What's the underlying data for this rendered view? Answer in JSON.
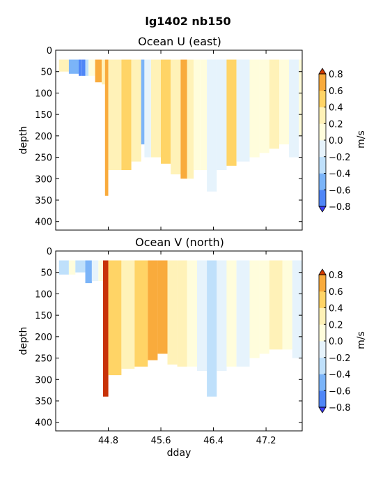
{
  "figure": {
    "suptitle": "lg1402 nb150"
  },
  "colors": {
    "levels": [
      -0.8,
      -0.6,
      -0.4,
      -0.2,
      0.0,
      0.2,
      0.4,
      0.6,
      0.8
    ],
    "bins": [
      "#3b3bf5",
      "#4f86f7",
      "#7bb4f8",
      "#bfe0fb",
      "#e6f3fc",
      "#fffddc",
      "#fff2b8",
      "#ffd466",
      "#f9ab3c",
      "#f05a14",
      "#c83208"
    ],
    "under": "#3b3bf5",
    "over": "#d23b00"
  },
  "chart_data": [
    {
      "type": "heatmap",
      "title": "Ocean U (east)",
      "xlabel": "",
      "ylabel": "depth",
      "xlim": [
        44.0,
        47.75
      ],
      "ylim": [
        420,
        0
      ],
      "xticks": [
        "44.8",
        "45.6",
        "46.4",
        "47.2"
      ],
      "xtick_values": [
        44.8,
        45.6,
        46.4,
        47.2
      ],
      "yticks": [
        "0",
        "50",
        "100",
        "150",
        "200",
        "250",
        "300",
        "350",
        "400"
      ],
      "ytick_values": [
        0,
        50,
        100,
        150,
        200,
        250,
        300,
        350,
        400
      ],
      "colorbar": {
        "label": "m/s",
        "ticks": [
          "0.8",
          "0.6",
          "0.4",
          "0.2",
          "0.0",
          "−0.2",
          "−0.4",
          "−0.6",
          "−0.8"
        ],
        "tick_values": [
          0.8,
          0.6,
          0.4,
          0.2,
          0.0,
          -0.2,
          -0.4,
          -0.6,
          -0.8
        ]
      },
      "data_coverage": {
        "x": [
          44.05,
          47.75
        ],
        "top_depth": 22
      },
      "segments": [
        {
          "x": [
            44.05,
            44.2
          ],
          "bottom": 50,
          "value": 0.3
        },
        {
          "x": [
            44.2,
            44.35
          ],
          "bottom": 55,
          "value": -0.5
        },
        {
          "x": [
            44.35,
            44.4
          ],
          "bottom": 60,
          "value": -0.7
        },
        {
          "x": [
            44.4,
            44.45
          ],
          "bottom": 60,
          "value": -0.8
        },
        {
          "x": [
            44.45,
            44.5
          ],
          "bottom": 60,
          "value": -0.4
        },
        {
          "x": [
            44.5,
            44.6
          ],
          "bottom": 60,
          "value": 0.1
        },
        {
          "x": [
            44.6,
            44.7
          ],
          "bottom": 75,
          "value": 0.6
        },
        {
          "x": [
            44.7,
            44.75
          ],
          "bottom": 80,
          "value": 0.3
        },
        {
          "x": [
            44.75,
            44.8
          ],
          "bottom": 340,
          "value": 0.7
        },
        {
          "x": [
            44.8,
            45.0
          ],
          "bottom": 280,
          "value": 0.35
        },
        {
          "x": [
            45.0,
            45.15
          ],
          "bottom": 280,
          "value": 0.45
        },
        {
          "x": [
            45.15,
            45.3
          ],
          "bottom": 260,
          "value": 0.2
        },
        {
          "x": [
            45.3,
            45.35
          ],
          "bottom": 220,
          "value": -0.5
        },
        {
          "x": [
            45.35,
            45.45
          ],
          "bottom": 250,
          "value": -0.1
        },
        {
          "x": [
            45.45,
            45.6
          ],
          "bottom": 250,
          "value": 0.25
        },
        {
          "x": [
            45.6,
            45.75
          ],
          "bottom": 265,
          "value": 0.5
        },
        {
          "x": [
            45.75,
            45.9
          ],
          "bottom": 290,
          "value": 0.2
        },
        {
          "x": [
            45.9,
            46.0
          ],
          "bottom": 300,
          "value": 0.7
        },
        {
          "x": [
            46.0,
            46.1
          ],
          "bottom": 300,
          "value": 0.3
        },
        {
          "x": [
            46.1,
            46.2
          ],
          "bottom": 280,
          "value": 0.1
        },
        {
          "x": [
            46.2,
            46.3
          ],
          "bottom": 280,
          "value": 0.05
        },
        {
          "x": [
            46.3,
            46.45
          ],
          "bottom": 330,
          "value": -0.1
        },
        {
          "x": [
            46.45,
            46.6
          ],
          "bottom": 280,
          "value": -0.15
        },
        {
          "x": [
            46.6,
            46.75
          ],
          "bottom": 270,
          "value": 0.5
        },
        {
          "x": [
            46.75,
            46.95
          ],
          "bottom": 260,
          "value": -0.1
        },
        {
          "x": [
            46.95,
            47.1
          ],
          "bottom": 250,
          "value": 0.05
        },
        {
          "x": [
            47.1,
            47.25
          ],
          "bottom": 240,
          "value": 0.1
        },
        {
          "x": [
            47.25,
            47.4
          ],
          "bottom": 230,
          "value": 0.3
        },
        {
          "x": [
            47.4,
            47.55
          ],
          "bottom": 220,
          "value": 0.1
        },
        {
          "x": [
            47.55,
            47.7
          ],
          "bottom": 250,
          "value": -0.2
        },
        {
          "x": [
            47.7,
            47.75
          ],
          "bottom": 200,
          "value": 0.1
        }
      ]
    },
    {
      "type": "heatmap",
      "title": "Ocean V (north)",
      "xlabel": "dday",
      "ylabel": "depth",
      "xlim": [
        44.0,
        47.75
      ],
      "ylim": [
        420,
        0
      ],
      "xticks": [
        "44.8",
        "45.6",
        "46.4",
        "47.2"
      ],
      "xtick_values": [
        44.8,
        45.6,
        46.4,
        47.2
      ],
      "yticks": [
        "0",
        "50",
        "100",
        "150",
        "200",
        "250",
        "300",
        "350",
        "400"
      ],
      "ytick_values": [
        0,
        50,
        100,
        150,
        200,
        250,
        300,
        350,
        400
      ],
      "colorbar": {
        "label": "m/s",
        "ticks": [
          "0.8",
          "0.6",
          "0.4",
          "0.2",
          "0.0",
          "−0.2",
          "−0.4",
          "−0.6",
          "−0.8"
        ],
        "tick_values": [
          0.8,
          0.6,
          0.4,
          0.2,
          0.0,
          -0.2,
          -0.4,
          -0.6,
          -0.8
        ]
      },
      "data_coverage": {
        "x": [
          44.05,
          47.75
        ],
        "top_depth": 22
      },
      "segments": [
        {
          "x": [
            44.05,
            44.2
          ],
          "bottom": 55,
          "value": -0.25
        },
        {
          "x": [
            44.2,
            44.3
          ],
          "bottom": 55,
          "value": 0.1
        },
        {
          "x": [
            44.3,
            44.45
          ],
          "bottom": 50,
          "value": -0.3
        },
        {
          "x": [
            44.45,
            44.55
          ],
          "bottom": 75,
          "value": -0.5
        },
        {
          "x": [
            44.55,
            44.65
          ],
          "bottom": 70,
          "value": -0.2
        },
        {
          "x": [
            44.65,
            44.72
          ],
          "bottom": 70,
          "value": 0.1
        },
        {
          "x": [
            44.72,
            44.8
          ],
          "bottom": 340,
          "value": 0.8
        },
        {
          "x": [
            44.8,
            45.0
          ],
          "bottom": 290,
          "value": 0.5
        },
        {
          "x": [
            45.0,
            45.2
          ],
          "bottom": 275,
          "value": 0.3
        },
        {
          "x": [
            45.2,
            45.4
          ],
          "bottom": 270,
          "value": 0.5
        },
        {
          "x": [
            45.4,
            45.55
          ],
          "bottom": 255,
          "value": 0.6
        },
        {
          "x": [
            45.55,
            45.7
          ],
          "bottom": 240,
          "value": 0.65
        },
        {
          "x": [
            45.7,
            45.85
          ],
          "bottom": 265,
          "value": 0.25
        },
        {
          "x": [
            45.85,
            46.0
          ],
          "bottom": 270,
          "value": 0.2
        },
        {
          "x": [
            46.0,
            46.15
          ],
          "bottom": 270,
          "value": 0.05
        },
        {
          "x": [
            46.15,
            46.3
          ],
          "bottom": 280,
          "value": -0.1
        },
        {
          "x": [
            46.3,
            46.45
          ],
          "bottom": 340,
          "value": -0.25
        },
        {
          "x": [
            46.45,
            46.6
          ],
          "bottom": 280,
          "value": -0.1
        },
        {
          "x": [
            46.6,
            46.75
          ],
          "bottom": 270,
          "value": 0.05
        },
        {
          "x": [
            46.75,
            46.95
          ],
          "bottom": 270,
          "value": -0.1
        },
        {
          "x": [
            46.95,
            47.1
          ],
          "bottom": 250,
          "value": 0.05
        },
        {
          "x": [
            47.1,
            47.25
          ],
          "bottom": 240,
          "value": 0.1
        },
        {
          "x": [
            47.25,
            47.45
          ],
          "bottom": 230,
          "value": 0.2
        },
        {
          "x": [
            47.45,
            47.6
          ],
          "bottom": 230,
          "value": 0.05
        },
        {
          "x": [
            47.6,
            47.75
          ],
          "bottom": 250,
          "value": -0.1
        }
      ]
    }
  ]
}
